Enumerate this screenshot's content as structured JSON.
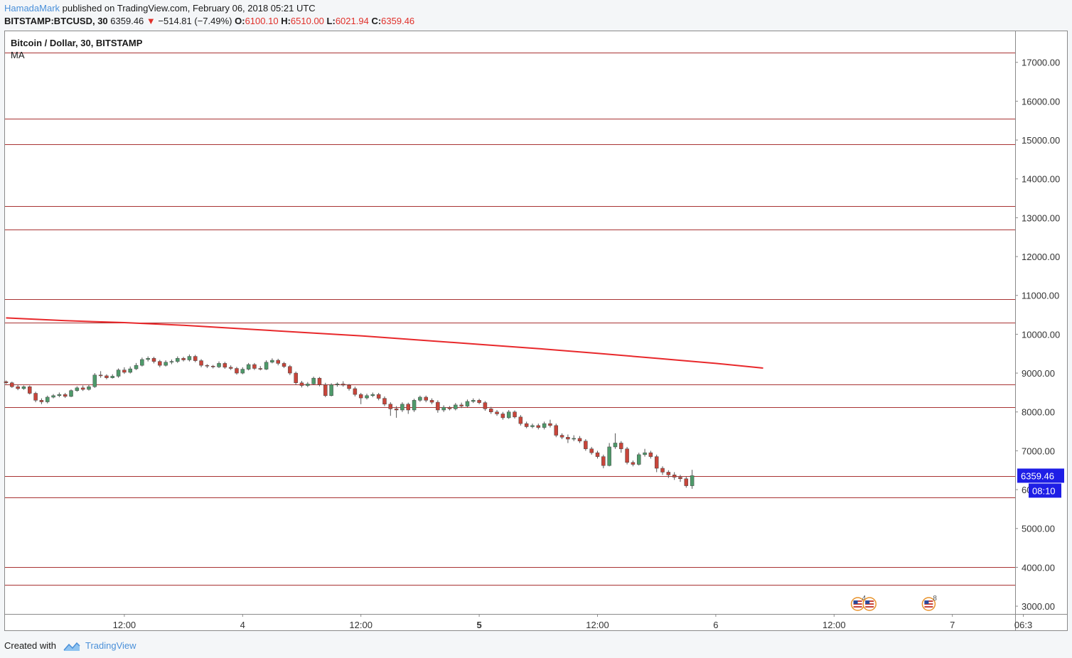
{
  "header": {
    "author": "HamadaMark",
    "published_text": " published on TradingView.com, February 06, 2018 05:21 UTC",
    "symbol": "BITSTAMP:BTCUSD, 30",
    "last": "6359.46",
    "arrow": "▼",
    "change": "−514.81 (−7.49%)",
    "open_label": "O:",
    "open": "6100.10",
    "high_label": "H:",
    "high": "6510.00",
    "low_label": "L:",
    "low": "6021.94",
    "close_label": "C:",
    "close": "6359.46"
  },
  "legend": {
    "title": "Bitcoin / Dollar, 30, BITSTAMP",
    "indicator": "MA"
  },
  "footer": {
    "created_with": "Created with",
    "brand": "TradingView"
  },
  "colors": {
    "up": "#4e9a6a",
    "down": "#c8453a",
    "level": "#a83232",
    "ma": "#e8282b",
    "badge": "#1e1ee6",
    "axis_text": "#333333"
  },
  "chart_data": {
    "type": "candlestick",
    "y_axis": {
      "min": 2800,
      "max": 17800,
      "ticks": [
        3000,
        4000,
        5000,
        6000,
        7000,
        8000,
        9000,
        10000,
        11000,
        12000,
        13000,
        14000,
        15000,
        16000,
        17000
      ]
    },
    "x_axis": {
      "ticks": [
        {
          "label": "12:00",
          "index": 20
        },
        {
          "label": "4",
          "index": 40
        },
        {
          "label": "12:00",
          "index": 60
        },
        {
          "label": "5",
          "index": 80,
          "bold": true
        },
        {
          "label": "12:00",
          "index": 100
        },
        {
          "label": "6",
          "index": 120
        },
        {
          "label": "12:00",
          "index": 140
        },
        {
          "label": "7",
          "index": 160
        },
        {
          "label": "06:3",
          "index": 172
        }
      ]
    },
    "horizontal_levels": [
      17250,
      15550,
      14900,
      13300,
      12700,
      10900,
      10300,
      8700,
      8130,
      6350,
      5800,
      4000,
      3550
    ],
    "last_price_label": "6359.46",
    "countdown_label": "08:10",
    "ma_series": [
      {
        "index": 0,
        "value": 10420
      },
      {
        "index": 10,
        "value": 10350
      },
      {
        "index": 20,
        "value": 10300
      },
      {
        "index": 30,
        "value": 10230
      },
      {
        "index": 40,
        "value": 10140
      },
      {
        "index": 50,
        "value": 10050
      },
      {
        "index": 60,
        "value": 9960
      },
      {
        "index": 70,
        "value": 9850
      },
      {
        "index": 80,
        "value": 9740
      },
      {
        "index": 90,
        "value": 9630
      },
      {
        "index": 100,
        "value": 9510
      },
      {
        "index": 110,
        "value": 9380
      },
      {
        "index": 120,
        "value": 9250
      },
      {
        "index": 128,
        "value": 9130
      }
    ],
    "candles": [
      [
        8780,
        8750,
        8810,
        8720
      ],
      [
        8750,
        8650,
        8780,
        8620
      ],
      [
        8650,
        8600,
        8700,
        8560
      ],
      [
        8600,
        8650,
        8680,
        8570
      ],
      [
        8650,
        8480,
        8680,
        8450
      ],
      [
        8480,
        8300,
        8520,
        8250
      ],
      [
        8300,
        8260,
        8350,
        8200
      ],
      [
        8260,
        8380,
        8420,
        8220
      ],
      [
        8380,
        8420,
        8460,
        8350
      ],
      [
        8420,
        8450,
        8500,
        8380
      ],
      [
        8450,
        8400,
        8490,
        8360
      ],
      [
        8400,
        8550,
        8580,
        8380
      ],
      [
        8550,
        8620,
        8660,
        8520
      ],
      [
        8620,
        8580,
        8680,
        8540
      ],
      [
        8580,
        8650,
        8700,
        8550
      ],
      [
        8650,
        8950,
        9000,
        8620
      ],
      [
        8950,
        8930,
        9050,
        8880
      ],
      [
        8930,
        8880,
        8970,
        8840
      ],
      [
        8880,
        8920,
        8970,
        8860
      ],
      [
        8920,
        9080,
        9120,
        8880
      ],
      [
        9080,
        9020,
        9150,
        8980
      ],
      [
        9020,
        9110,
        9170,
        8990
      ],
      [
        9110,
        9200,
        9260,
        9080
      ],
      [
        9200,
        9350,
        9400,
        9170
      ],
      [
        9350,
        9380,
        9430,
        9300
      ],
      [
        9380,
        9300,
        9420,
        9250
      ],
      [
        9300,
        9200,
        9340,
        9150
      ],
      [
        9200,
        9280,
        9330,
        9170
      ],
      [
        9280,
        9300,
        9350,
        9230
      ],
      [
        9300,
        9380,
        9430,
        9260
      ],
      [
        9380,
        9340,
        9420,
        9300
      ],
      [
        9340,
        9430,
        9480,
        9300
      ],
      [
        9430,
        9320,
        9470,
        9280
      ],
      [
        9320,
        9200,
        9360,
        9150
      ],
      [
        9200,
        9180,
        9230,
        9130
      ],
      [
        9180,
        9160,
        9210,
        9120
      ],
      [
        9160,
        9250,
        9300,
        9130
      ],
      [
        9250,
        9150,
        9290,
        9110
      ],
      [
        9150,
        9120,
        9200,
        9080
      ],
      [
        9120,
        9000,
        9160,
        8960
      ],
      [
        9000,
        9100,
        9150,
        8970
      ],
      [
        9100,
        9220,
        9260,
        9070
      ],
      [
        9220,
        9120,
        9260,
        9080
      ],
      [
        9120,
        9100,
        9180,
        9070
      ],
      [
        9100,
        9280,
        9330,
        9080
      ],
      [
        9280,
        9330,
        9380,
        9250
      ],
      [
        9330,
        9250,
        9370,
        9200
      ],
      [
        9250,
        9170,
        9290,
        9130
      ],
      [
        9170,
        9000,
        9210,
        8950
      ],
      [
        9000,
        8750,
        9040,
        8700
      ],
      [
        8750,
        8680,
        8800,
        8630
      ],
      [
        8680,
        8720,
        8770,
        8640
      ],
      [
        8720,
        8870,
        8910,
        8690
      ],
      [
        8870,
        8700,
        8900,
        8660
      ],
      [
        8700,
        8420,
        8750,
        8380
      ],
      [
        8420,
        8700,
        8740,
        8400
      ],
      [
        8700,
        8720,
        8760,
        8650
      ],
      [
        8720,
        8690,
        8790,
        8650
      ],
      [
        8690,
        8600,
        8720,
        8550
      ],
      [
        8600,
        8450,
        8650,
        8400
      ],
      [
        8450,
        8360,
        8490,
        8200
      ],
      [
        8360,
        8420,
        8470,
        8320
      ],
      [
        8420,
        8450,
        8500,
        8380
      ],
      [
        8450,
        8350,
        8490,
        8300
      ],
      [
        8350,
        8200,
        8400,
        8150
      ],
      [
        8200,
        8080,
        8250,
        7900
      ],
      [
        8080,
        8050,
        8150,
        7850
      ],
      [
        8050,
        8200,
        8250,
        8000
      ],
      [
        8200,
        8050,
        8240,
        7950
      ],
      [
        8050,
        8300,
        8340,
        8000
      ],
      [
        8300,
        8380,
        8420,
        8260
      ],
      [
        8380,
        8300,
        8420,
        8250
      ],
      [
        8300,
        8250,
        8350,
        8200
      ],
      [
        8250,
        8050,
        8300,
        7980
      ],
      [
        8050,
        8120,
        8170,
        8000
      ],
      [
        8120,
        8080,
        8150,
        8040
      ],
      [
        8080,
        8180,
        8230,
        8040
      ],
      [
        8180,
        8150,
        8240,
        8100
      ],
      [
        8150,
        8270,
        8320,
        8120
      ],
      [
        8270,
        8300,
        8350,
        8230
      ],
      [
        8300,
        8240,
        8340,
        8200
      ],
      [
        8240,
        8080,
        8280,
        8030
      ],
      [
        8080,
        8000,
        8130,
        7950
      ],
      [
        8000,
        7950,
        8050,
        7900
      ],
      [
        7950,
        7850,
        8000,
        7800
      ],
      [
        7850,
        8000,
        8050,
        7820
      ],
      [
        8000,
        7870,
        8040,
        7830
      ],
      [
        7870,
        7700,
        7920,
        7650
      ],
      [
        7700,
        7620,
        7750,
        7580
      ],
      [
        7620,
        7650,
        7700,
        7580
      ],
      [
        7650,
        7600,
        7700,
        7550
      ],
      [
        7600,
        7700,
        7750,
        7550
      ],
      [
        7700,
        7650,
        7800,
        7600
      ],
      [
        7650,
        7400,
        7700,
        7350
      ],
      [
        7400,
        7350,
        7450,
        7300
      ],
      [
        7350,
        7300,
        7420,
        7200
      ],
      [
        7300,
        7320,
        7400,
        7250
      ],
      [
        7320,
        7250,
        7380,
        7200
      ],
      [
        7250,
        7050,
        7300,
        7000
      ],
      [
        7050,
        6950,
        7100,
        6900
      ],
      [
        6950,
        6850,
        7000,
        6800
      ],
      [
        6850,
        6620,
        6900,
        6550
      ],
      [
        6620,
        7100,
        7200,
        6600
      ],
      [
        7100,
        7200,
        7450,
        7050
      ],
      [
        7200,
        7050,
        7250,
        6950
      ],
      [
        7050,
        6700,
        7100,
        6650
      ],
      [
        6700,
        6650,
        6750,
        6600
      ],
      [
        6650,
        6900,
        6950,
        6620
      ],
      [
        6900,
        6950,
        7050,
        6850
      ],
      [
        6950,
        6850,
        7000,
        6800
      ],
      [
        6850,
        6550,
        6900,
        6450
      ],
      [
        6550,
        6450,
        6600,
        6380
      ],
      [
        6450,
        6380,
        6500,
        6300
      ],
      [
        6380,
        6320,
        6450,
        6250
      ],
      [
        6320,
        6280,
        6380,
        6200
      ],
      [
        6280,
        6100,
        6330,
        6050
      ],
      [
        6100,
        6359.46,
        6510,
        6021.94
      ]
    ],
    "events": [
      {
        "index": 144,
        "count": "4"
      },
      {
        "index": 146,
        "count": ""
      },
      {
        "index": 156,
        "count": "8"
      }
    ]
  }
}
